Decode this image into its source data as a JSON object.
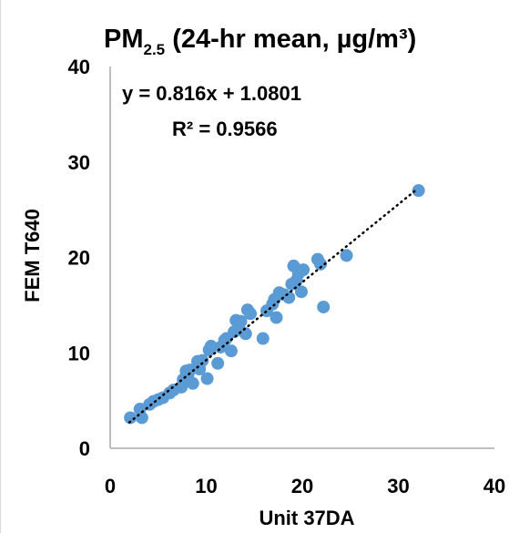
{
  "chart_data": {
    "type": "scatter",
    "title": {
      "prefix": "PM",
      "subscript": "2.5",
      "suffix": " (24-hr mean, µg/m³)"
    },
    "xlabel": "Unit 37DA",
    "ylabel": "FEM T640",
    "xlim": [
      0,
      40
    ],
    "ylim": [
      0,
      40
    ],
    "xticks": [
      "0",
      "10",
      "20",
      "30",
      "40"
    ],
    "yticks": [
      "0",
      "10",
      "20",
      "30",
      "40"
    ],
    "grid": false,
    "legend": "none",
    "annotations": [
      "y = 0.816x + 1.0801",
      "R² = 0.9566"
    ],
    "trendline": {
      "slope": 0.816,
      "intercept": 1.0801,
      "x_range": [
        2,
        32
      ],
      "style": "dotted"
    },
    "marker_color": "#5b9bd5",
    "trendline_color": "#000000",
    "series": [
      {
        "x": [
          2.1,
          3.1,
          3.3,
          4.1,
          4.5,
          5.0,
          5.5,
          6.2,
          6.6,
          7.4,
          7.6,
          7.9,
          8.1,
          8.3,
          8.6,
          9.1,
          9.3,
          9.6,
          10.1,
          10.3,
          10.5,
          11.2,
          11.5,
          11.9,
          12.1,
          12.6,
          12.9,
          13.1,
          13.4,
          13.6,
          14.1,
          14.3,
          14.6,
          15.9,
          16.3,
          16.9,
          17.1,
          17.3,
          17.6,
          18.1,
          18.6,
          18.9,
          19.1,
          19.4,
          19.6,
          19.9,
          20.1,
          21.6,
          21.9,
          22.2,
          24.6,
          32.1
        ],
        "y": [
          3.2,
          4.1,
          3.2,
          4.6,
          4.9,
          5.1,
          5.3,
          5.8,
          6.1,
          6.4,
          7.2,
          8.1,
          7.7,
          8.2,
          6.8,
          9.1,
          8.3,
          9.2,
          7.3,
          10.3,
          10.7,
          8.9,
          10.6,
          11.3,
          11.5,
          10.2,
          12.2,
          13.4,
          12.6,
          13.3,
          12.0,
          14.5,
          14.1,
          11.5,
          14.4,
          15.1,
          15.6,
          13.7,
          16.3,
          16.1,
          15.8,
          17.2,
          19.1,
          17.6,
          18.3,
          16.4,
          18.7,
          19.8,
          19.3,
          14.8,
          20.2,
          27.0
        ]
      }
    ]
  }
}
